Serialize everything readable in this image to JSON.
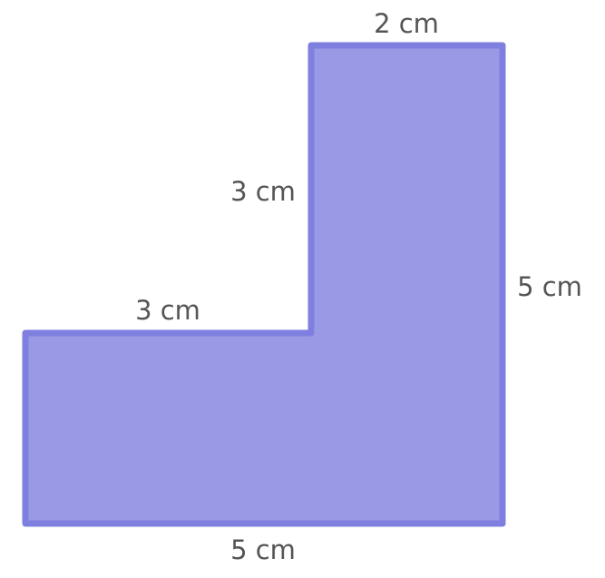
{
  "shape": {
    "fill_color": "#9999e6",
    "stroke_color": "#7f7fe0"
  },
  "labels": {
    "top": "2 cm",
    "inner_vertical": "3 cm",
    "inner_horizontal": "3 cm",
    "right": "5 cm",
    "bottom": "5 cm"
  }
}
